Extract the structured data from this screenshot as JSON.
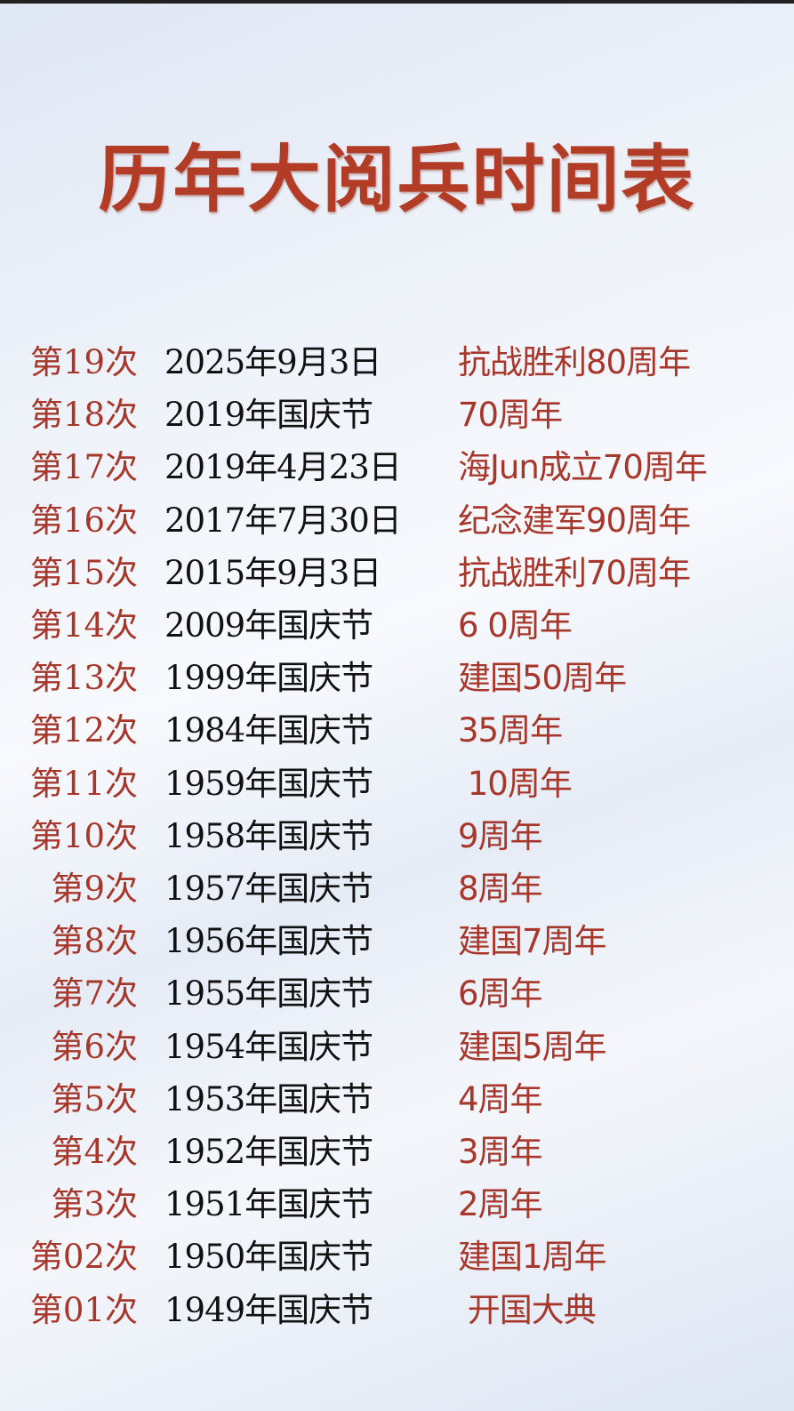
{
  "title": "历年大阅兵时间表",
  "colors": {
    "accent": "#a8372b",
    "title": "#b23c26",
    "text": "#111111"
  },
  "rows": [
    {
      "n": "第19次",
      "date": "2025年9月3日",
      "event": "抗战胜利80周年"
    },
    {
      "n": "第18次",
      "date": "2019年国庆节",
      "event": "70周年"
    },
    {
      "n": "第17次",
      "date": "2019年4月23日",
      "event": "海Jun成立70周年"
    },
    {
      "n": "第16次",
      "date": "2017年7月30日",
      "event": "纪念建军90周年"
    },
    {
      "n": "第15次",
      "date": "2015年9月3日",
      "event": "抗战胜利70周年"
    },
    {
      "n": "第14次",
      "date": "2009年国庆节",
      "event": "6 0周年"
    },
    {
      "n": "第13次",
      "date": "1999年国庆节",
      "event": "建国50周年"
    },
    {
      "n": "第12次",
      "date": "1984年国庆节",
      "event": "35周年"
    },
    {
      "n": "第11次",
      "date": "1959年国庆节",
      "event": " 10周年"
    },
    {
      "n": "第10次",
      "date": "1958年国庆节",
      "event": "9周年"
    },
    {
      "n": "第9次",
      "date": "1957年国庆节",
      "event": "8周年"
    },
    {
      "n": "第8次",
      "date": "1956年国庆节",
      "event": "建国7周年"
    },
    {
      "n": "第7次",
      "date": "1955年国庆节",
      "event": "6周年"
    },
    {
      "n": "第6次",
      "date": "1954年国庆节",
      "event": "建国5周年"
    },
    {
      "n": "第5次",
      "date": "1953年国庆节",
      "event": "4周年"
    },
    {
      "n": "第4次",
      "date": "1952年国庆节",
      "event": "3周年"
    },
    {
      "n": "第3次",
      "date": "1951年国庆节",
      "event": "2周年"
    },
    {
      "n": "第02次",
      "date": "1950年国庆节",
      "event": "建国1周年"
    },
    {
      "n": "第01次",
      "date": "1949年国庆节",
      "event": " 开国大典"
    }
  ]
}
